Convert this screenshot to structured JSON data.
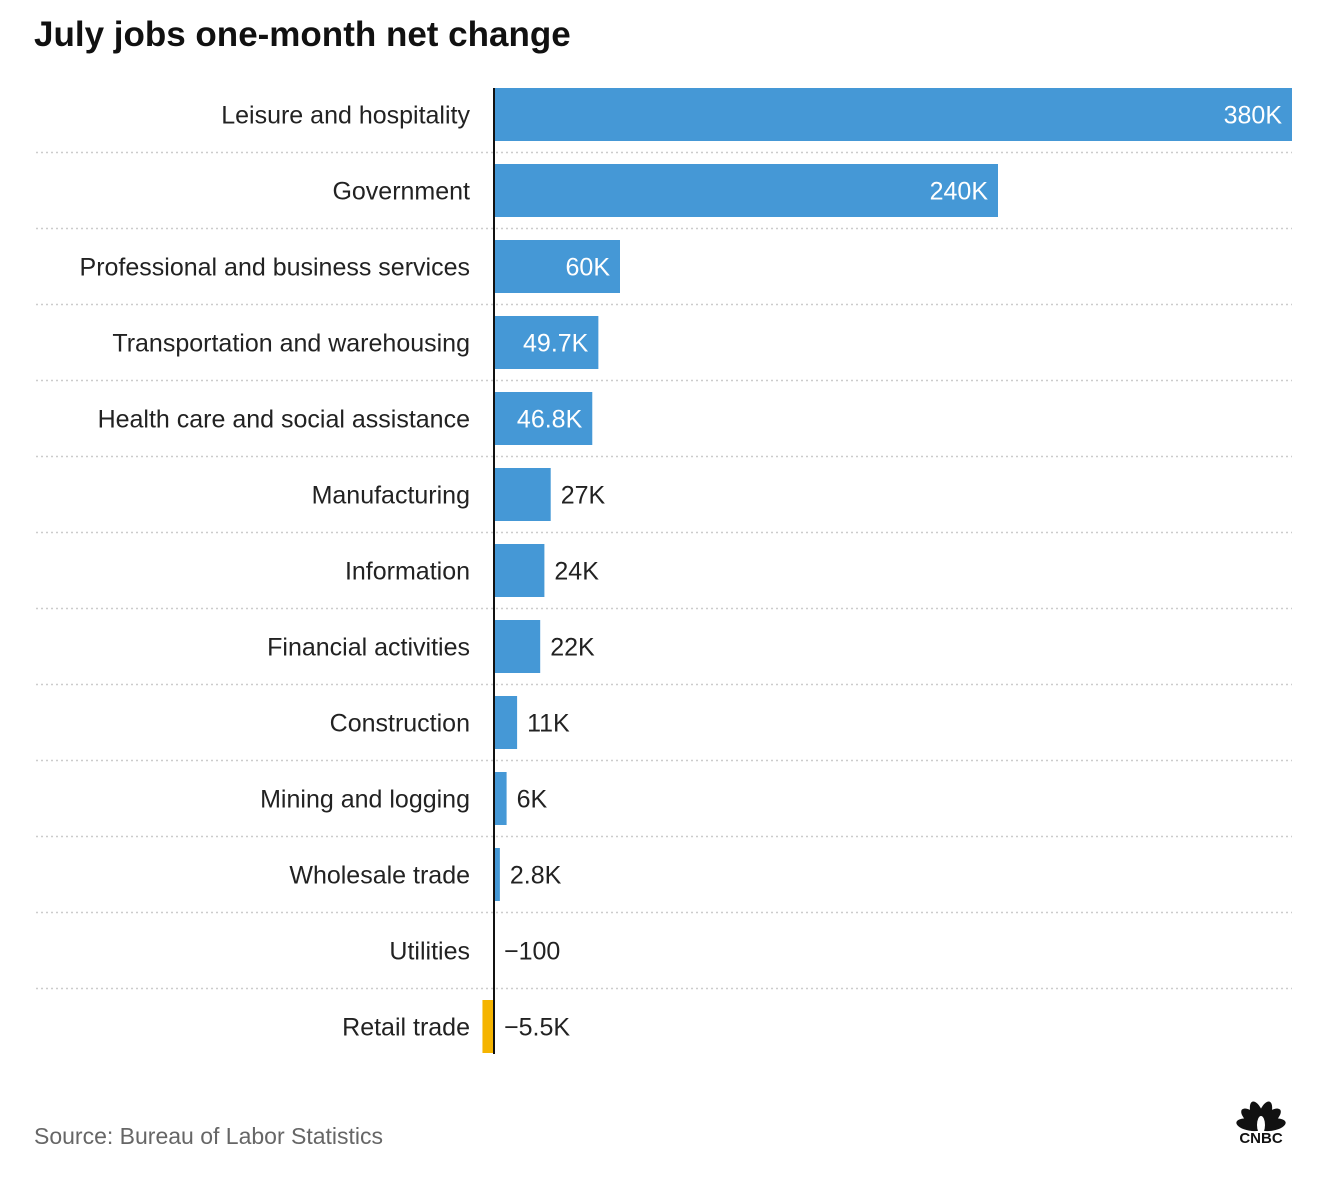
{
  "chart_data": {
    "type": "bar",
    "orientation": "horizontal",
    "title": "July jobs one-month net change",
    "categories": [
      "Leisure and hospitality",
      "Government",
      "Professional and business services",
      "Transportation and warehousing",
      "Health care and social assistance",
      "Manufacturing",
      "Information",
      "Financial activities",
      "Construction",
      "Mining and logging",
      "Wholesale trade",
      "Utilities",
      "Retail trade"
    ],
    "values": [
      380000,
      240000,
      60000,
      49700,
      46800,
      27000,
      24000,
      22000,
      11000,
      6000,
      2800,
      -100,
      -5500
    ],
    "value_labels": [
      "380K",
      "240K",
      "60K",
      "49.7K",
      "46.8K",
      "27K",
      "24K",
      "22K",
      "11K",
      "6K",
      "2.8K",
      "−100",
      "−5.5K"
    ],
    "xlim": [
      0,
      380000
    ],
    "xlabel": "",
    "ylabel": "",
    "grid": false,
    "colors": {
      "positive": "#4598d6",
      "negative": "#f5b400",
      "row_divider": "#cccccc",
      "axis": "#111111"
    }
  },
  "source": "Source: Bureau of Labor Statistics",
  "logo": {
    "text": "CNBC",
    "icon": "cnbc-peacock-icon"
  }
}
